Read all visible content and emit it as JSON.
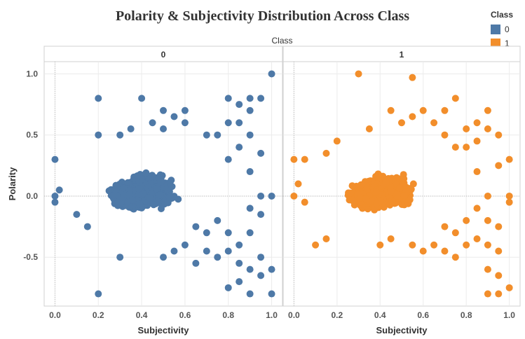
{
  "title": "Polarity & Subjectivity Distribution Across Class",
  "legend": {
    "title": "Class",
    "items": [
      {
        "label": "0",
        "color": "#4e79a7"
      },
      {
        "label": "1",
        "color": "#f28e2b"
      }
    ]
  },
  "chart_data": {
    "type": "scatter",
    "title": "Polarity & Subjectivity Distribution Across Class",
    "facet_label": "Class",
    "facets": [
      "0",
      "1"
    ],
    "xlabel": "Subjectivity",
    "ylabel": "Polarity",
    "xlim": [
      -0.05,
      1.05
    ],
    "ylim": [
      -0.9,
      1.1
    ],
    "xticks": [
      "0.0",
      "0.2",
      "0.4",
      "0.6",
      "0.8",
      "1.0"
    ],
    "yticks": [
      "1.0",
      "0.5",
      "0.0",
      "-0.5"
    ],
    "grid": true,
    "legend_position": "top-right",
    "series": [
      {
        "name": "0",
        "color": "#4e79a7",
        "points": [
          [
            1.0,
            1.0
          ],
          [
            0.2,
            0.8
          ],
          [
            0.4,
            0.8
          ],
          [
            0.6,
            0.7
          ],
          [
            0.8,
            0.8
          ],
          [
            0.85,
            0.75
          ],
          [
            0.9,
            0.8
          ],
          [
            0.95,
            0.8
          ],
          [
            0.9,
            0.7
          ],
          [
            0.0,
            0.3
          ],
          [
            0.3,
            0.5
          ],
          [
            0.5,
            0.55
          ],
          [
            0.2,
            0.5
          ],
          [
            0.7,
            0.5
          ],
          [
            0.75,
            0.5
          ],
          [
            0.85,
            0.6
          ],
          [
            0.9,
            0.5
          ],
          [
            0.95,
            0.35
          ],
          [
            0.8,
            0.3
          ],
          [
            0.9,
            0.2
          ],
          [
            1.0,
            0.0
          ],
          [
            0.95,
            0.0
          ],
          [
            0.9,
            -0.1
          ],
          [
            0.3,
            -0.5
          ],
          [
            0.2,
            -0.8
          ],
          [
            0.5,
            -0.5
          ],
          [
            0.55,
            -0.45
          ],
          [
            0.6,
            -0.4
          ],
          [
            0.65,
            -0.55
          ],
          [
            0.7,
            -0.45
          ],
          [
            0.75,
            -0.5
          ],
          [
            0.8,
            -0.45
          ],
          [
            0.85,
            -0.55
          ],
          [
            0.8,
            -0.3
          ],
          [
            0.85,
            -0.4
          ],
          [
            0.9,
            -0.6
          ],
          [
            0.95,
            -0.65
          ],
          [
            0.85,
            -0.7
          ],
          [
            0.8,
            -0.75
          ],
          [
            0.9,
            -0.8
          ],
          [
            1.0,
            -0.8
          ],
          [
            0.95,
            -0.5
          ],
          [
            1.0,
            -0.6
          ],
          [
            0.7,
            -0.3
          ],
          [
            0.75,
            -0.2
          ],
          [
            0.9,
            -0.3
          ],
          [
            0.95,
            -0.15
          ],
          [
            0.85,
            0.4
          ],
          [
            0.8,
            0.6
          ],
          [
            0.6,
            0.6
          ],
          [
            0.55,
            0.65
          ],
          [
            0.5,
            0.7
          ],
          [
            0.45,
            0.6
          ],
          [
            0.35,
            0.55
          ],
          [
            0.15,
            -0.25
          ],
          [
            0.1,
            -0.15
          ],
          [
            0.0,
            -0.05
          ],
          [
            0.02,
            0.05
          ],
          [
            0.0,
            0.0
          ],
          [
            0.65,
            -0.25
          ]
        ]
      },
      {
        "name": "1",
        "color": "#f28e2b",
        "points": [
          [
            0.3,
            1.0
          ],
          [
            0.55,
            0.97
          ],
          [
            0.75,
            0.8
          ],
          [
            0.6,
            0.7
          ],
          [
            0.7,
            0.7
          ],
          [
            0.45,
            0.7
          ],
          [
            0.9,
            0.7
          ],
          [
            0.85,
            0.6
          ],
          [
            0.9,
            0.55
          ],
          [
            0.95,
            0.5
          ],
          [
            0.8,
            0.55
          ],
          [
            0.0,
            0.3
          ],
          [
            0.05,
            0.3
          ],
          [
            1.0,
            0.3
          ],
          [
            0.95,
            0.25
          ],
          [
            0.85,
            0.2
          ],
          [
            0.9,
            0.0
          ],
          [
            1.0,
            0.0
          ],
          [
            1.0,
            -0.05
          ],
          [
            0.85,
            -0.1
          ],
          [
            0.9,
            -0.2
          ],
          [
            0.15,
            -0.35
          ],
          [
            0.1,
            -0.4
          ],
          [
            0.4,
            -0.4
          ],
          [
            0.45,
            -0.35
          ],
          [
            0.55,
            -0.4
          ],
          [
            0.6,
            -0.45
          ],
          [
            0.65,
            -0.4
          ],
          [
            0.7,
            -0.45
          ],
          [
            0.75,
            -0.5
          ],
          [
            0.8,
            -0.4
          ],
          [
            0.85,
            -0.35
          ],
          [
            0.9,
            -0.4
          ],
          [
            0.95,
            -0.45
          ],
          [
            0.9,
            -0.6
          ],
          [
            0.95,
            -0.65
          ],
          [
            0.9,
            -0.8
          ],
          [
            0.95,
            -0.8
          ],
          [
            1.0,
            -0.75
          ],
          [
            0.75,
            -0.3
          ],
          [
            0.7,
            -0.25
          ],
          [
            0.8,
            -0.2
          ],
          [
            0.75,
            0.4
          ],
          [
            0.8,
            0.4
          ],
          [
            0.7,
            0.5
          ],
          [
            0.65,
            0.6
          ],
          [
            0.5,
            0.6
          ],
          [
            0.55,
            0.65
          ],
          [
            0.35,
            0.55
          ],
          [
            0.2,
            0.45
          ],
          [
            0.15,
            0.35
          ],
          [
            0.05,
            -0.05
          ],
          [
            0.0,
            0.0
          ],
          [
            0.02,
            0.1
          ],
          [
            0.85,
            0.45
          ],
          [
            0.95,
            -0.25
          ]
        ]
      }
    ]
  }
}
